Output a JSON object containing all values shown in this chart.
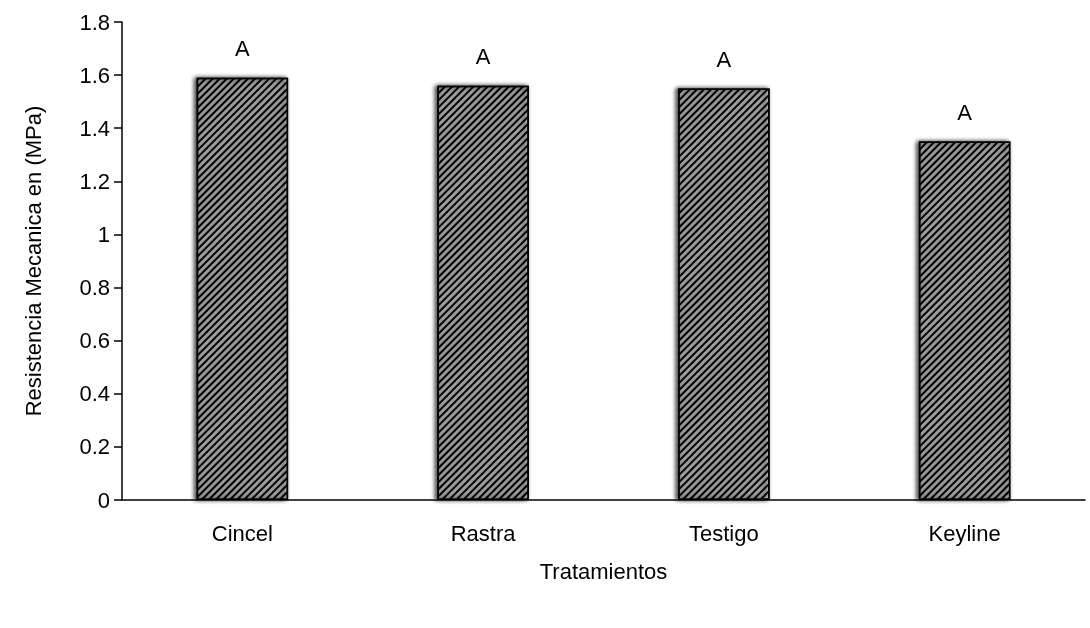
{
  "chart_data": {
    "type": "bar",
    "xlabel": "Tratamientos",
    "ylabel": "Resistencia Mecanica en (MPa)",
    "categories": [
      "Cincel",
      "Rastra",
      "Testigo",
      "Keyline"
    ],
    "values": [
      1.59,
      1.56,
      1.55,
      1.35
    ],
    "value_labels": [
      "A",
      "A",
      "A",
      "A"
    ],
    "color": "#ffffff",
    "ylim": [
      0,
      1.8
    ],
    "yticks": [
      0,
      0.2,
      0.4,
      0.6,
      0.8,
      1,
      1.2,
      1.4,
      1.6,
      1.8
    ],
    "grid": false
  }
}
